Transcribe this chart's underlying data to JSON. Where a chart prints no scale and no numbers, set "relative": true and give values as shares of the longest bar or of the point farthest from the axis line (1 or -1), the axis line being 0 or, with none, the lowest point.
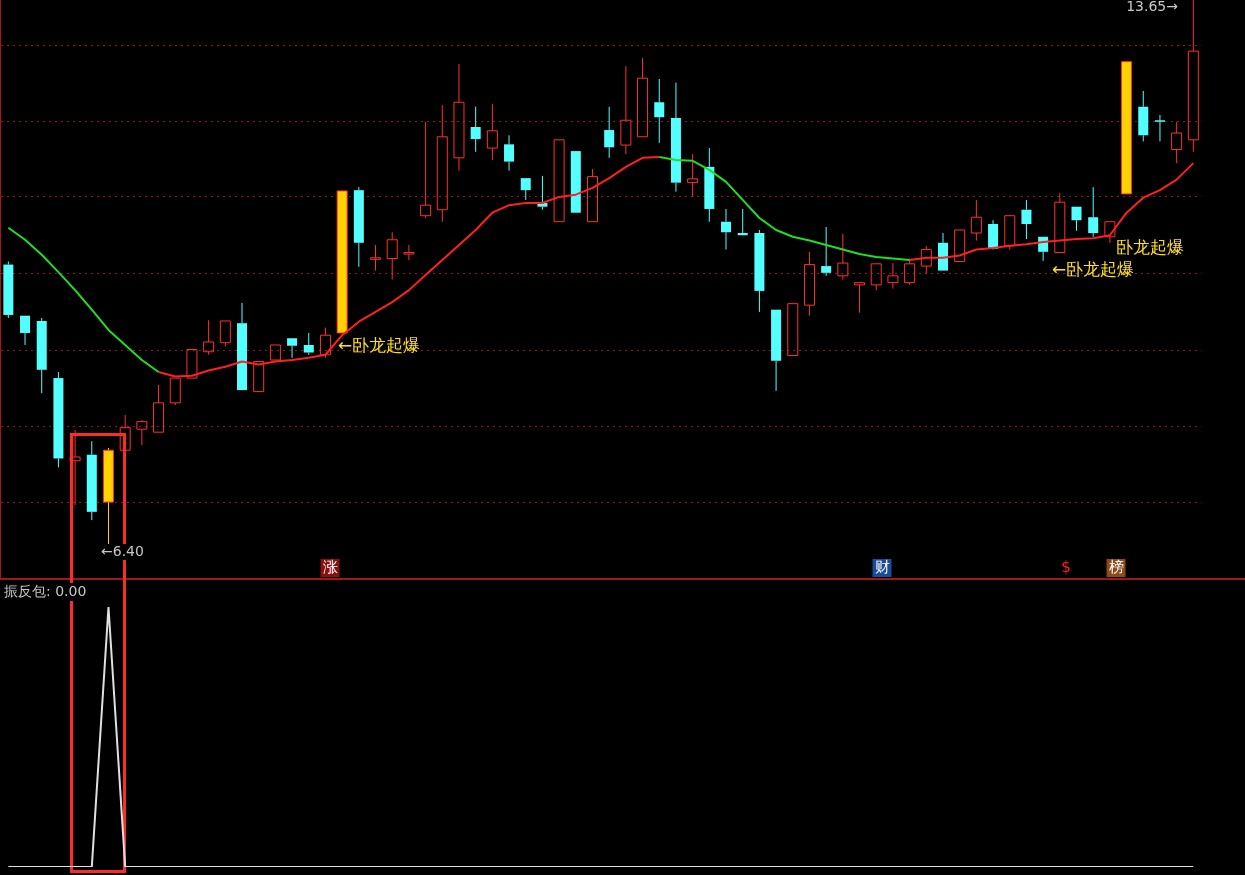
{
  "chart_data": [
    {
      "type": "candlestick",
      "categories": [
        null,
        null,
        null,
        null,
        null,
        null,
        null,
        null,
        null,
        null,
        null,
        null,
        null,
        null,
        null,
        null,
        null,
        null,
        null,
        null,
        null,
        null,
        null,
        null,
        null,
        null,
        null,
        null,
        null,
        null,
        null,
        null,
        null,
        null,
        null,
        null,
        null,
        null,
        null,
        null,
        null,
        null,
        null,
        null,
        null,
        null,
        null,
        null,
        null,
        null,
        null,
        null,
        null,
        null,
        null,
        null,
        null,
        null,
        null,
        null,
        null,
        null,
        null,
        null,
        null,
        null,
        null,
        null,
        null,
        null,
        null,
        null
      ],
      "ohlc": [
        [
          10.13,
          10.17,
          9.42,
          9.46
        ],
        [
          9.45,
          9.45,
          9.06,
          9.22
        ],
        [
          9.38,
          9.42,
          8.42,
          8.73
        ],
        [
          8.62,
          8.7,
          7.43,
          7.55
        ],
        [
          7.52,
          7.93,
          6.93,
          7.57
        ],
        [
          7.6,
          7.78,
          6.73,
          6.84
        ],
        [
          6.97,
          7.69,
          6.4,
          7.66
        ],
        [
          7.66,
          8.13,
          7.66,
          7.96
        ],
        [
          7.94,
          8.06,
          7.73,
          8.04
        ],
        [
          7.9,
          8.53,
          7.9,
          8.29
        ],
        [
          8.29,
          8.62,
          8.26,
          8.62
        ],
        [
          8.62,
          9.0,
          8.62,
          9.0
        ],
        [
          8.97,
          9.39,
          8.93,
          9.1
        ],
        [
          9.09,
          9.38,
          9.04,
          9.38
        ],
        [
          9.35,
          9.62,
          8.46,
          8.46
        ],
        [
          8.44,
          8.84,
          8.44,
          8.84
        ],
        [
          8.86,
          9.06,
          8.86,
          9.06
        ],
        [
          9.15,
          9.15,
          8.89,
          9.05
        ],
        [
          9.06,
          9.22,
          8.93,
          8.96
        ],
        [
          8.93,
          9.29,
          8.89,
          9.19
        ],
        [
          9.22,
          11.11,
          9.22,
          11.11
        ],
        [
          11.12,
          11.16,
          10.1,
          10.42
        ],
        [
          10.21,
          10.39,
          10.05,
          10.22
        ],
        [
          10.21,
          10.56,
          9.93,
          10.46
        ],
        [
          10.27,
          10.39,
          10.19,
          10.29
        ],
        [
          10.78,
          12.03,
          10.75,
          10.92
        ],
        [
          10.86,
          12.25,
          10.7,
          11.83
        ],
        [
          11.55,
          12.8,
          11.38,
          12.29
        ],
        [
          11.96,
          12.23,
          11.63,
          11.8
        ],
        [
          11.68,
          12.27,
          11.52,
          11.91
        ],
        [
          11.73,
          11.85,
          11.38,
          11.5
        ],
        [
          11.28,
          11.28,
          10.99,
          11.12
        ],
        [
          10.95,
          11.31,
          10.86,
          10.9
        ],
        [
          10.7,
          11.79,
          10.7,
          11.79
        ],
        [
          11.64,
          11.64,
          10.82,
          10.82
        ],
        [
          10.7,
          11.4,
          10.7,
          11.3
        ],
        [
          11.92,
          12.23,
          11.55,
          11.69
        ],
        [
          11.72,
          12.77,
          11.6,
          12.05
        ],
        [
          11.83,
          12.88,
          11.83,
          12.61
        ],
        [
          12.29,
          12.6,
          11.75,
          12.09
        ],
        [
          12.08,
          12.55,
          11.1,
          11.22
        ],
        [
          11.22,
          11.6,
          11.03,
          11.27
        ],
        [
          11.43,
          11.68,
          10.7,
          10.87
        ],
        [
          10.7,
          10.87,
          10.33,
          10.56
        ],
        [
          10.55,
          10.87,
          10.52,
          10.52
        ],
        [
          10.55,
          10.59,
          9.5,
          9.78
        ],
        [
          9.53,
          9.53,
          8.45,
          8.85
        ],
        [
          8.92,
          9.61,
          8.92,
          9.61
        ],
        [
          9.59,
          10.3,
          9.45,
          10.13
        ],
        [
          10.11,
          10.63,
          9.98,
          10.02
        ],
        [
          9.98,
          10.54,
          9.93,
          10.15
        ],
        [
          9.86,
          9.89,
          9.49,
          9.89
        ],
        [
          9.86,
          10.14,
          9.79,
          10.14
        ],
        [
          9.89,
          10.15,
          9.81,
          9.98
        ],
        [
          9.89,
          10.21,
          9.86,
          10.14
        ],
        [
          10.11,
          10.38,
          10.01,
          10.33
        ],
        [
          10.42,
          10.55,
          10.05,
          10.05
        ],
        [
          10.17,
          10.59,
          10.17,
          10.59
        ],
        [
          10.55,
          10.99,
          10.45,
          10.76
        ],
        [
          10.67,
          10.72,
          10.33,
          10.34
        ],
        [
          10.38,
          10.78,
          10.33,
          10.78
        ],
        [
          10.86,
          10.99,
          10.47,
          10.67
        ],
        [
          10.5,
          10.5,
          10.18,
          10.3
        ],
        [
          10.29,
          11.08,
          10.29,
          10.96
        ],
        [
          10.9,
          10.9,
          10.58,
          10.72
        ],
        [
          10.76,
          11.16,
          10.5,
          10.55
        ],
        [
          10.5,
          10.7,
          10.42,
          10.7
        ],
        [
          11.07,
          12.83,
          11.07,
          12.83
        ],
        [
          12.23,
          12.44,
          11.77,
          11.85
        ],
        [
          12.05,
          12.12,
          11.77,
          12.04
        ],
        [
          11.66,
          12.03,
          11.48,
          11.88
        ],
        [
          11.79,
          13.65,
          11.63,
          12.97
        ]
      ],
      "colors": [
        "#54ffff",
        "#54ffff",
        "#54ffff",
        "#54ffff",
        "#ff3030",
        "#54ffff",
        "#ffd200",
        "#ff3030",
        "#ff3030",
        "#ff3030",
        "#ff3030",
        "#ff3030",
        "#ff3030",
        "#ff3030",
        "#54ffff",
        "#ff3030",
        "#ff3030",
        "#54ffff",
        "#54ffff",
        "#ff3030",
        "#ffd200",
        "#54ffff",
        "#ff3030",
        "#ff3030",
        "#ff3030",
        "#ff3030",
        "#ff3030",
        "#ff3030",
        "#54ffff",
        "#ff3030",
        "#54ffff",
        "#54ffff",
        "#54ffff",
        "#ff3030",
        "#54ffff",
        "#ff3030",
        "#54ffff",
        "#ff3030",
        "#ff3030",
        "#54ffff",
        "#54ffff",
        "#ff3030",
        "#54ffff",
        "#54ffff",
        "#54ffff",
        "#54ffff",
        "#54ffff",
        "#ff3030",
        "#ff3030",
        "#54ffff",
        "#ff3030",
        "#ff3030",
        "#ff3030",
        "#ff3030",
        "#ff3030",
        "#ff3030",
        "#54ffff",
        "#ff3030",
        "#ff3030",
        "#54ffff",
        "#ff3030",
        "#54ffff",
        "#54ffff",
        "#ff3030",
        "#54ffff",
        "#54ffff",
        "#ff3030",
        "#ffd200",
        "#54ffff",
        "#54ffff",
        "#ff3030",
        "#ff3030"
      ],
      "series": [
        {
          "type": "line",
          "color": "#22dd22",
          "values": [
            10.62,
            10.46,
            10.26,
            10.03,
            9.79,
            9.53,
            9.26,
            9.06,
            8.86,
            8.7,
            null,
            null,
            null,
            null,
            null,
            null,
            null,
            null,
            null,
            null,
            null,
            null,
            null,
            null,
            null,
            null,
            null,
            null,
            null,
            null,
            null,
            null,
            null,
            null,
            null,
            null,
            null,
            null,
            null,
            11.56,
            11.52,
            11.51,
            11.39,
            11.23,
            10.99,
            10.75,
            10.59,
            10.5,
            10.45,
            10.39,
            10.33,
            10.27,
            10.23,
            10.21,
            10.19,
            null,
            null,
            null,
            null,
            null,
            null,
            null,
            null,
            null,
            null,
            null,
            null,
            null,
            null,
            null,
            null,
            null
          ]
        },
        {
          "type": "line",
          "color": "#ff2020",
          "values": [
            null,
            null,
            null,
            null,
            null,
            null,
            null,
            null,
            null,
            8.7,
            8.64,
            8.65,
            8.72,
            8.77,
            8.84,
            8.8,
            8.84,
            8.86,
            8.89,
            8.93,
            9.19,
            9.37,
            9.5,
            9.63,
            9.79,
            9.99,
            10.19,
            10.39,
            10.59,
            10.82,
            10.92,
            10.95,
            10.95,
            11.03,
            11.06,
            11.15,
            11.28,
            11.43,
            11.55,
            11.56,
            null,
            null,
            null,
            null,
            null,
            null,
            null,
            null,
            null,
            null,
            null,
            null,
            null,
            null,
            10.19,
            10.22,
            10.22,
            10.25,
            10.33,
            10.35,
            10.38,
            10.4,
            10.43,
            10.45,
            10.47,
            10.48,
            10.52,
            10.82,
            11.02,
            11.12,
            11.26,
            11.48
          ]
        }
      ],
      "ylim": [
        5.96,
        13.65
      ],
      "yticks": [
        {
          "value": 13.05,
          "label": null
        },
        {
          "value": 12.03,
          "label": null
        },
        {
          "value": 11.03,
          "label": null
        },
        {
          "value": 10.01,
          "label": null
        },
        {
          "value": 8.99,
          "label": null
        },
        {
          "value": 7.98,
          "label": null
        },
        {
          "value": 6.97,
          "label": null
        }
      ],
      "grid": "y",
      "tick_labels": false,
      "legend": false,
      "annotations": [
        "13.65→",
        "←6.40",
        "←卧龙起爆",
        "←卧龙起爆",
        "卧龙起爆",
        "涨",
        "财",
        "$",
        "榜"
      ]
    },
    {
      "type": "line",
      "title": "振反包: 0.00",
      "relative": true,
      "tick_labels": false,
      "legend": false,
      "categories": [
        null,
        null,
        null,
        null,
        null,
        null,
        null,
        null,
        null,
        null,
        null,
        null,
        null,
        null,
        null,
        null,
        null,
        null,
        null,
        null,
        null,
        null,
        null,
        null,
        null,
        null,
        null,
        null,
        null,
        null,
        null,
        null,
        null,
        null,
        null,
        null,
        null,
        null,
        null,
        null,
        null,
        null,
        null,
        null,
        null,
        null,
        null,
        null,
        null,
        null,
        null,
        null,
        null,
        null,
        null,
        null,
        null,
        null,
        null,
        null,
        null,
        null,
        null,
        null,
        null,
        null,
        null,
        null,
        null,
        null,
        null,
        null
      ],
      "series": [
        {
          "color": "#e0e0e0",
          "values": [
            0,
            0,
            0,
            0,
            0,
            0,
            1,
            0,
            0,
            0,
            0,
            0,
            0,
            0,
            0,
            0,
            0,
            0,
            0,
            0,
            0,
            0,
            0,
            0,
            0,
            0,
            0,
            0,
            0,
            0,
            0,
            0,
            0,
            0,
            0,
            0,
            0,
            0,
            0,
            0,
            0,
            0,
            0,
            0,
            0,
            0,
            0,
            0,
            0,
            0,
            0,
            0,
            0,
            0,
            0,
            0,
            0,
            0,
            0,
            0,
            0,
            0,
            0,
            0,
            0,
            0,
            0,
            0,
            0,
            0,
            0,
            0
          ]
        }
      ]
    }
  ]
}
